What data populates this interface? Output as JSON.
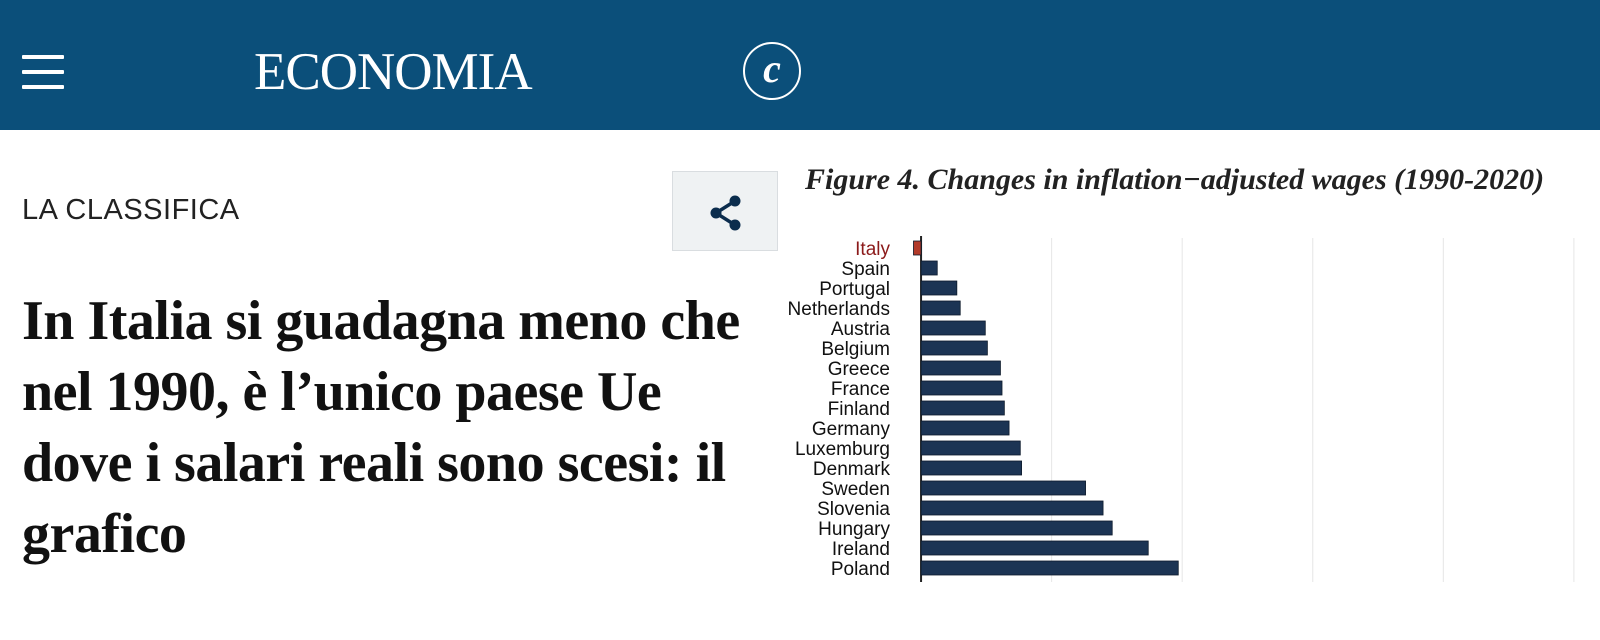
{
  "header": {
    "menu_icon": "hamburger-menu-icon",
    "brand": "ECONOMIA",
    "logo_letter": "c"
  },
  "article": {
    "kicker": "LA CLASSIFICA",
    "headline": "In Italia si guadagna meno che nel 1990, è l’unico paese Ue dove i salari reali sono scesi: il grafico",
    "share_icon": "share-icon"
  },
  "colors": {
    "header_bg": "#0b4f7a",
    "bar": "#1c3454",
    "italy_label": "#8b1a1a",
    "italy_bar": "#b23a2a"
  },
  "chart_data": {
    "type": "bar",
    "orientation": "horizontal",
    "title": "Figure 4. Changes in inflation−adjusted wages (1990-2020)",
    "categories": [
      "Italy",
      "Spain",
      "Portugal",
      "Netherlands",
      "Austria",
      "Belgium",
      "Greece",
      "France",
      "Finland",
      "Germany",
      "Luxemburg",
      "Denmark",
      "Sweden",
      "Slovenia",
      "Hungary",
      "Ireland",
      "Poland"
    ],
    "values": [
      -2.9,
      6.2,
      13.7,
      15.0,
      24.6,
      25.4,
      30.4,
      31.0,
      31.9,
      33.7,
      38.0,
      38.5,
      63.0,
      69.7,
      73.2,
      87.0,
      98.5
    ],
    "highlight": "Italy",
    "xlim": [
      -5,
      260
    ],
    "grid": true,
    "legend": "none"
  }
}
